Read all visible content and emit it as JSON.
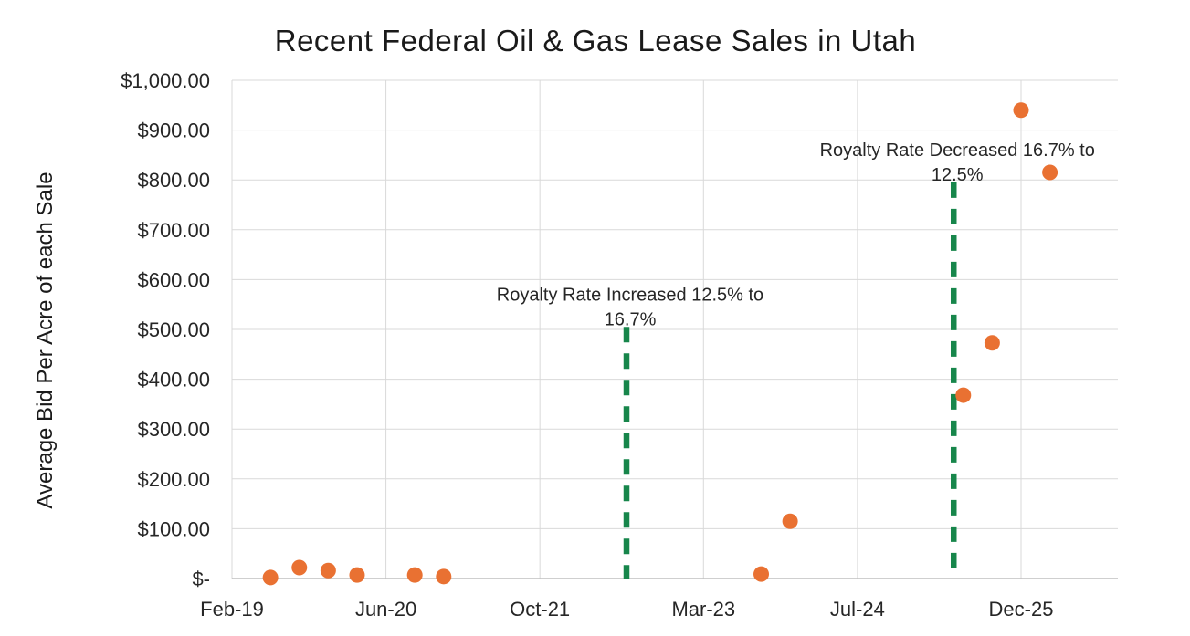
{
  "chart_data": {
    "type": "scatter",
    "title": "Recent Federal Oil & Gas Lease Sales in Utah",
    "ylabel": "Average Bid Per Acre of each Sale",
    "xlabel": "",
    "ylim": [
      0,
      1000
    ],
    "y_tick_step": 100,
    "y_tick_labels": [
      "$-",
      "$100.00",
      "$200.00",
      "$300.00",
      "$400.00",
      "$500.00",
      "$600.00",
      "$700.00",
      "$800.00",
      "$900.00",
      "$1,000.00"
    ],
    "x_tick_labels": [
      "Feb-19",
      "Jun-20",
      "Oct-21",
      "Mar-23",
      "Jul-24",
      "Dec-25"
    ],
    "grid": true,
    "legend": "none",
    "marker_color": "#E97132",
    "gridline_color": "#D9D9D9",
    "axis_line_color": "#BFBFBF",
    "text_color": "#262626",
    "series": [
      {
        "name": "Average Bid Per Acre of each Sale",
        "points": [
          {
            "date": "Jun-19",
            "value": 2
          },
          {
            "date": "Sep-19",
            "value": 22
          },
          {
            "date": "Dec-19",
            "value": 16
          },
          {
            "date": "Mar-20",
            "value": 7
          },
          {
            "date": "Sep-20",
            "value": 7
          },
          {
            "date": "Dec-20",
            "value": 4
          },
          {
            "date": "Sep-23",
            "value": 9
          },
          {
            "date": "Dec-23",
            "value": 115
          },
          {
            "date": "Jun-25",
            "value": 368
          },
          {
            "date": "Sep-25",
            "value": 473
          },
          {
            "date": "Dec-25",
            "value": 940
          },
          {
            "date": "Mar-26",
            "value": 815
          }
        ]
      }
    ],
    "annotations": [
      {
        "line1": "Royalty Rate Increased 12.5% to",
        "line2": "16.7%",
        "date": "Jul-22",
        "line_top_value": 505,
        "color": "#17864B"
      },
      {
        "line1": "Royalty Rate Decreased 16.7% to",
        "line2": "12.5%",
        "date": "May-25",
        "line_top_value": 795,
        "color": "#17864B"
      }
    ]
  }
}
